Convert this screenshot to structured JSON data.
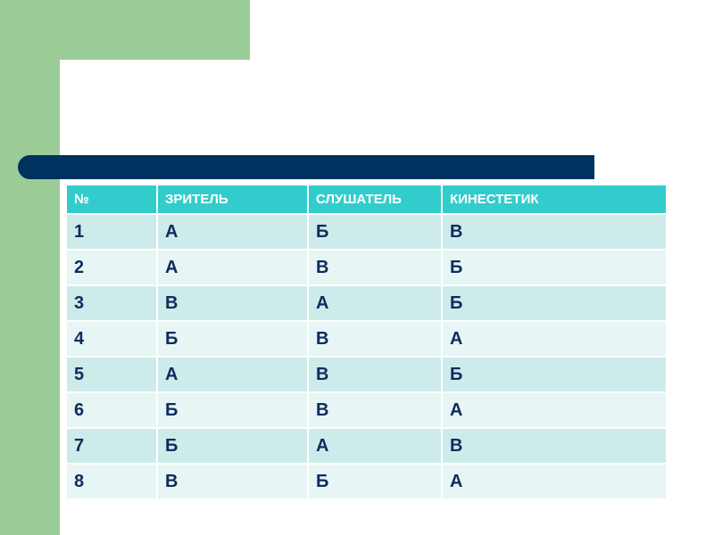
{
  "colors": {
    "green": "#9bcc98",
    "navy": "#00325f",
    "header": "#33cccc",
    "row_odd": "#cdebeb",
    "row_even": "#e7f5f5"
  },
  "table": {
    "headers": [
      "№",
      "ЗРИТЕЛЬ",
      "СЛУШАТЕЛЬ",
      "КИНЕСТЕТИК"
    ],
    "rows": [
      [
        "1",
        "А",
        "Б",
        "В"
      ],
      [
        "2",
        "А",
        "В",
        "Б"
      ],
      [
        "3",
        "В",
        "А",
        "Б"
      ],
      [
        "4",
        "Б",
        "В",
        "А"
      ],
      [
        "5",
        "А",
        "В",
        "Б"
      ],
      [
        "6",
        "Б",
        "В",
        "А"
      ],
      [
        "7",
        "Б",
        "А",
        "В"
      ],
      [
        "8",
        "В",
        "Б",
        "А"
      ]
    ]
  }
}
